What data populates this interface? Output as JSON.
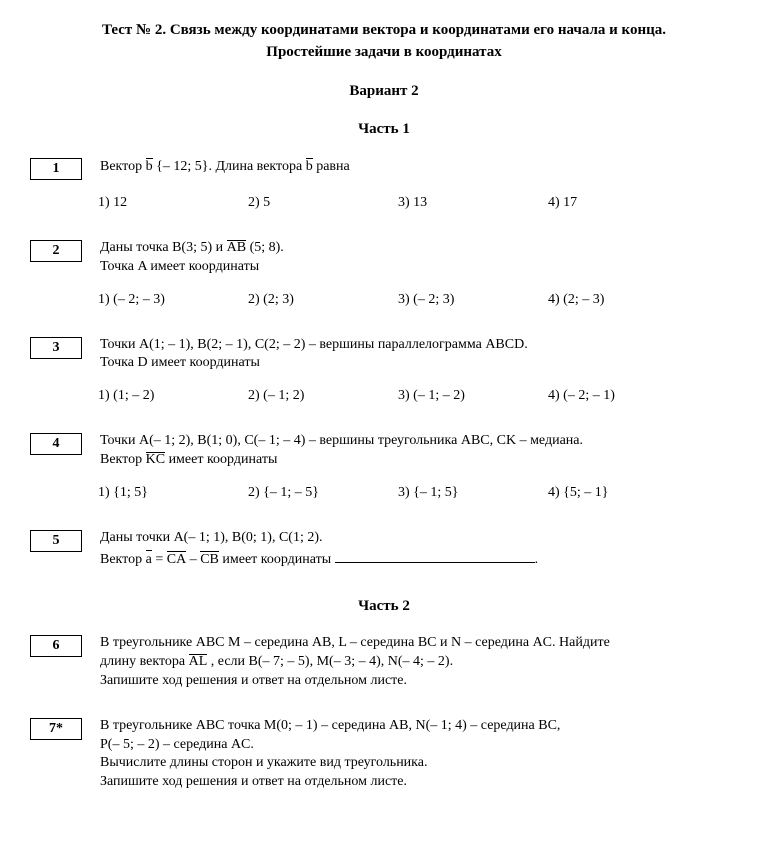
{
  "header": {
    "title": "Тест № 2. Связь между координатами вектора и координатами его начала и конца.",
    "subtitle": "Простейшие задачи в координатах",
    "variant": "Вариант 2",
    "part1": "Часть 1",
    "part2": "Часть 2"
  },
  "p1": {
    "num": "1",
    "t_a": "Вектор ",
    "t_vec": "b",
    "t_b": " {– 12;  5}. Длина вектора ",
    "t_vec2": "b",
    "t_c": "  равна",
    "o1": "1) 12",
    "o2": "2) 5",
    "o3": "3) 13",
    "o4": "4) 17"
  },
  "p2": {
    "num": "2",
    "l1a": "Даны точка B(3;  5) и  ",
    "l1_ov": "AB",
    "l1b": " (5;  8).",
    "l2": "Точка A имеет координаты",
    "o1": "1) (– 2;  – 3)",
    "o2": "2) (2;  3)",
    "o3": "3) (– 2;  3)",
    "o4": "4) (2;  – 3)"
  },
  "p3": {
    "num": "3",
    "l1": "Точки A(1;  – 1), B(2;  – 1), C(2;  – 2) – вершины параллелограмма ABCD.",
    "l2": "Точка D имеет координаты",
    "o1": "1) (1;  – 2)",
    "o2": "2) (– 1;  2)",
    "o3": "3) (– 1;  – 2)",
    "o4": "4) (– 2;  – 1)"
  },
  "p4": {
    "num": "4",
    "l1": "Точки A(– 1;  2), B(1;  0), C(– 1;  – 4) – вершины треугольника ABC, CK – медиана.",
    "l2a": "Вектор  ",
    "l2_ov": "KC",
    "l2b": "  имеет координаты",
    "o1": "1) {1;  5}",
    "o2": "2) {– 1;  – 5}",
    "o3": "3) {– 1;  5}",
    "o4": "4) {5;  – 1}"
  },
  "p5": {
    "num": "5",
    "l1": "Даны точки A(– 1;  1), B(0;  1), C(1;  2).",
    "l2a": "Вектор  ",
    "l2_ova": "a",
    "l2_eq": " = ",
    "l2_ovb": "CA",
    "l2_minus": " – ",
    "l2_ovc": "CB",
    "l2b": "   имеет координаты ",
    "period": "."
  },
  "p6": {
    "num": "6",
    "l1": "В треугольнике ABC  M – середина AB,  L – середина BC  и  N – середина AC. Найдите",
    "l2a": "длину вектора  ",
    "l2_ov": "AL",
    "l2b": " , если B(– 7; – 5), M(– 3; – 4), N(– 4; – 2).",
    "l3": "Запишите ход решения и ответ на отдельном листе."
  },
  "p7": {
    "num": "7*",
    "l1": "В треугольнике ABC точка M(0; – 1) – середина AB, N(– 1; 4) – середина BC,",
    "l2": "P(– 5; – 2) – середина AC.",
    "l3": "Вычислите длины сторон и укажите вид треугольника.",
    "l4": "Запишите ход решения и ответ на отдельном листе."
  }
}
